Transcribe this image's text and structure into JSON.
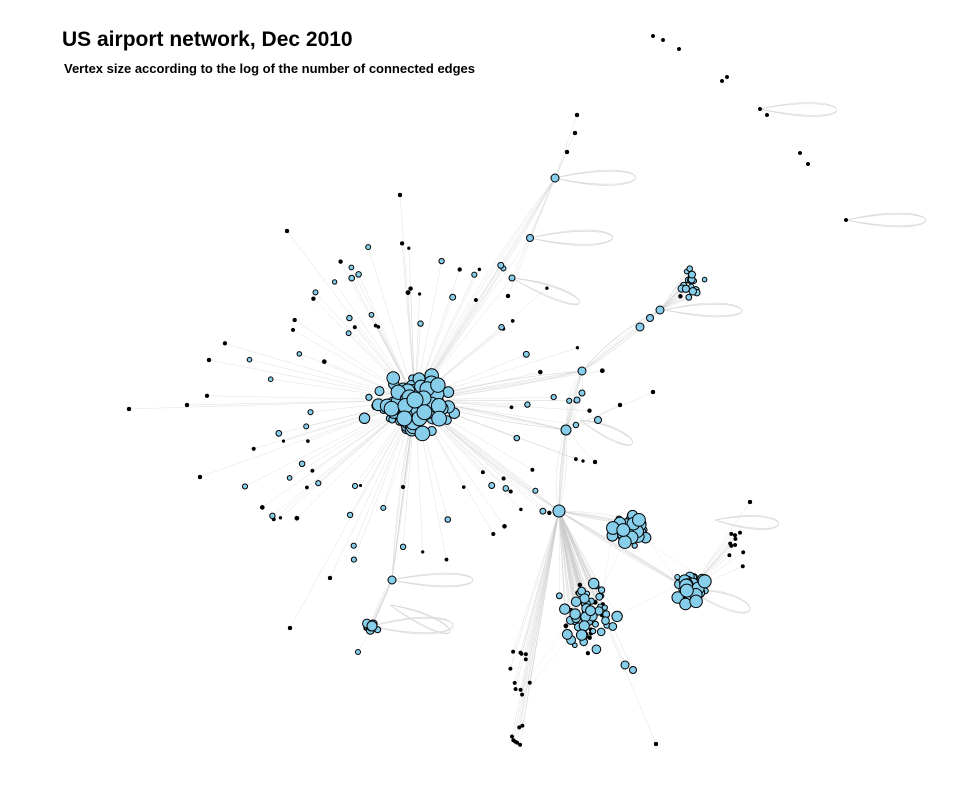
{
  "figure": {
    "title": "US airport network, Dec 2010",
    "subtitle": "Vertex size according to the log of the number of connected edges"
  },
  "colors": {
    "vertex_fill": "#87ceeb",
    "vertex_stroke": "#000000",
    "edge": "#cccccc",
    "background": "#ffffff"
  }
}
